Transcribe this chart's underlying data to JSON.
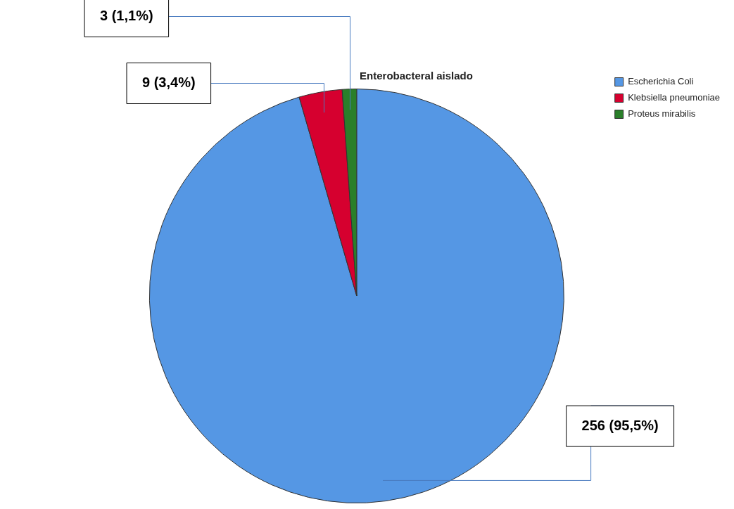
{
  "chart_data": {
    "type": "pie",
    "title": "Enterobacteral aislado",
    "categories": [
      "Escherichia Coli",
      "Klebsiella pneumoniae",
      "Proteus mirabilis"
    ],
    "values": [
      256,
      9,
      3
    ],
    "colors": [
      "#5597e4",
      "#d6002f",
      "#2a7f2a"
    ],
    "value_labels": [
      "256 (95,5%)",
      "9 (3,4%)",
      "3 (1,1%)"
    ],
    "legend": "top right"
  }
}
